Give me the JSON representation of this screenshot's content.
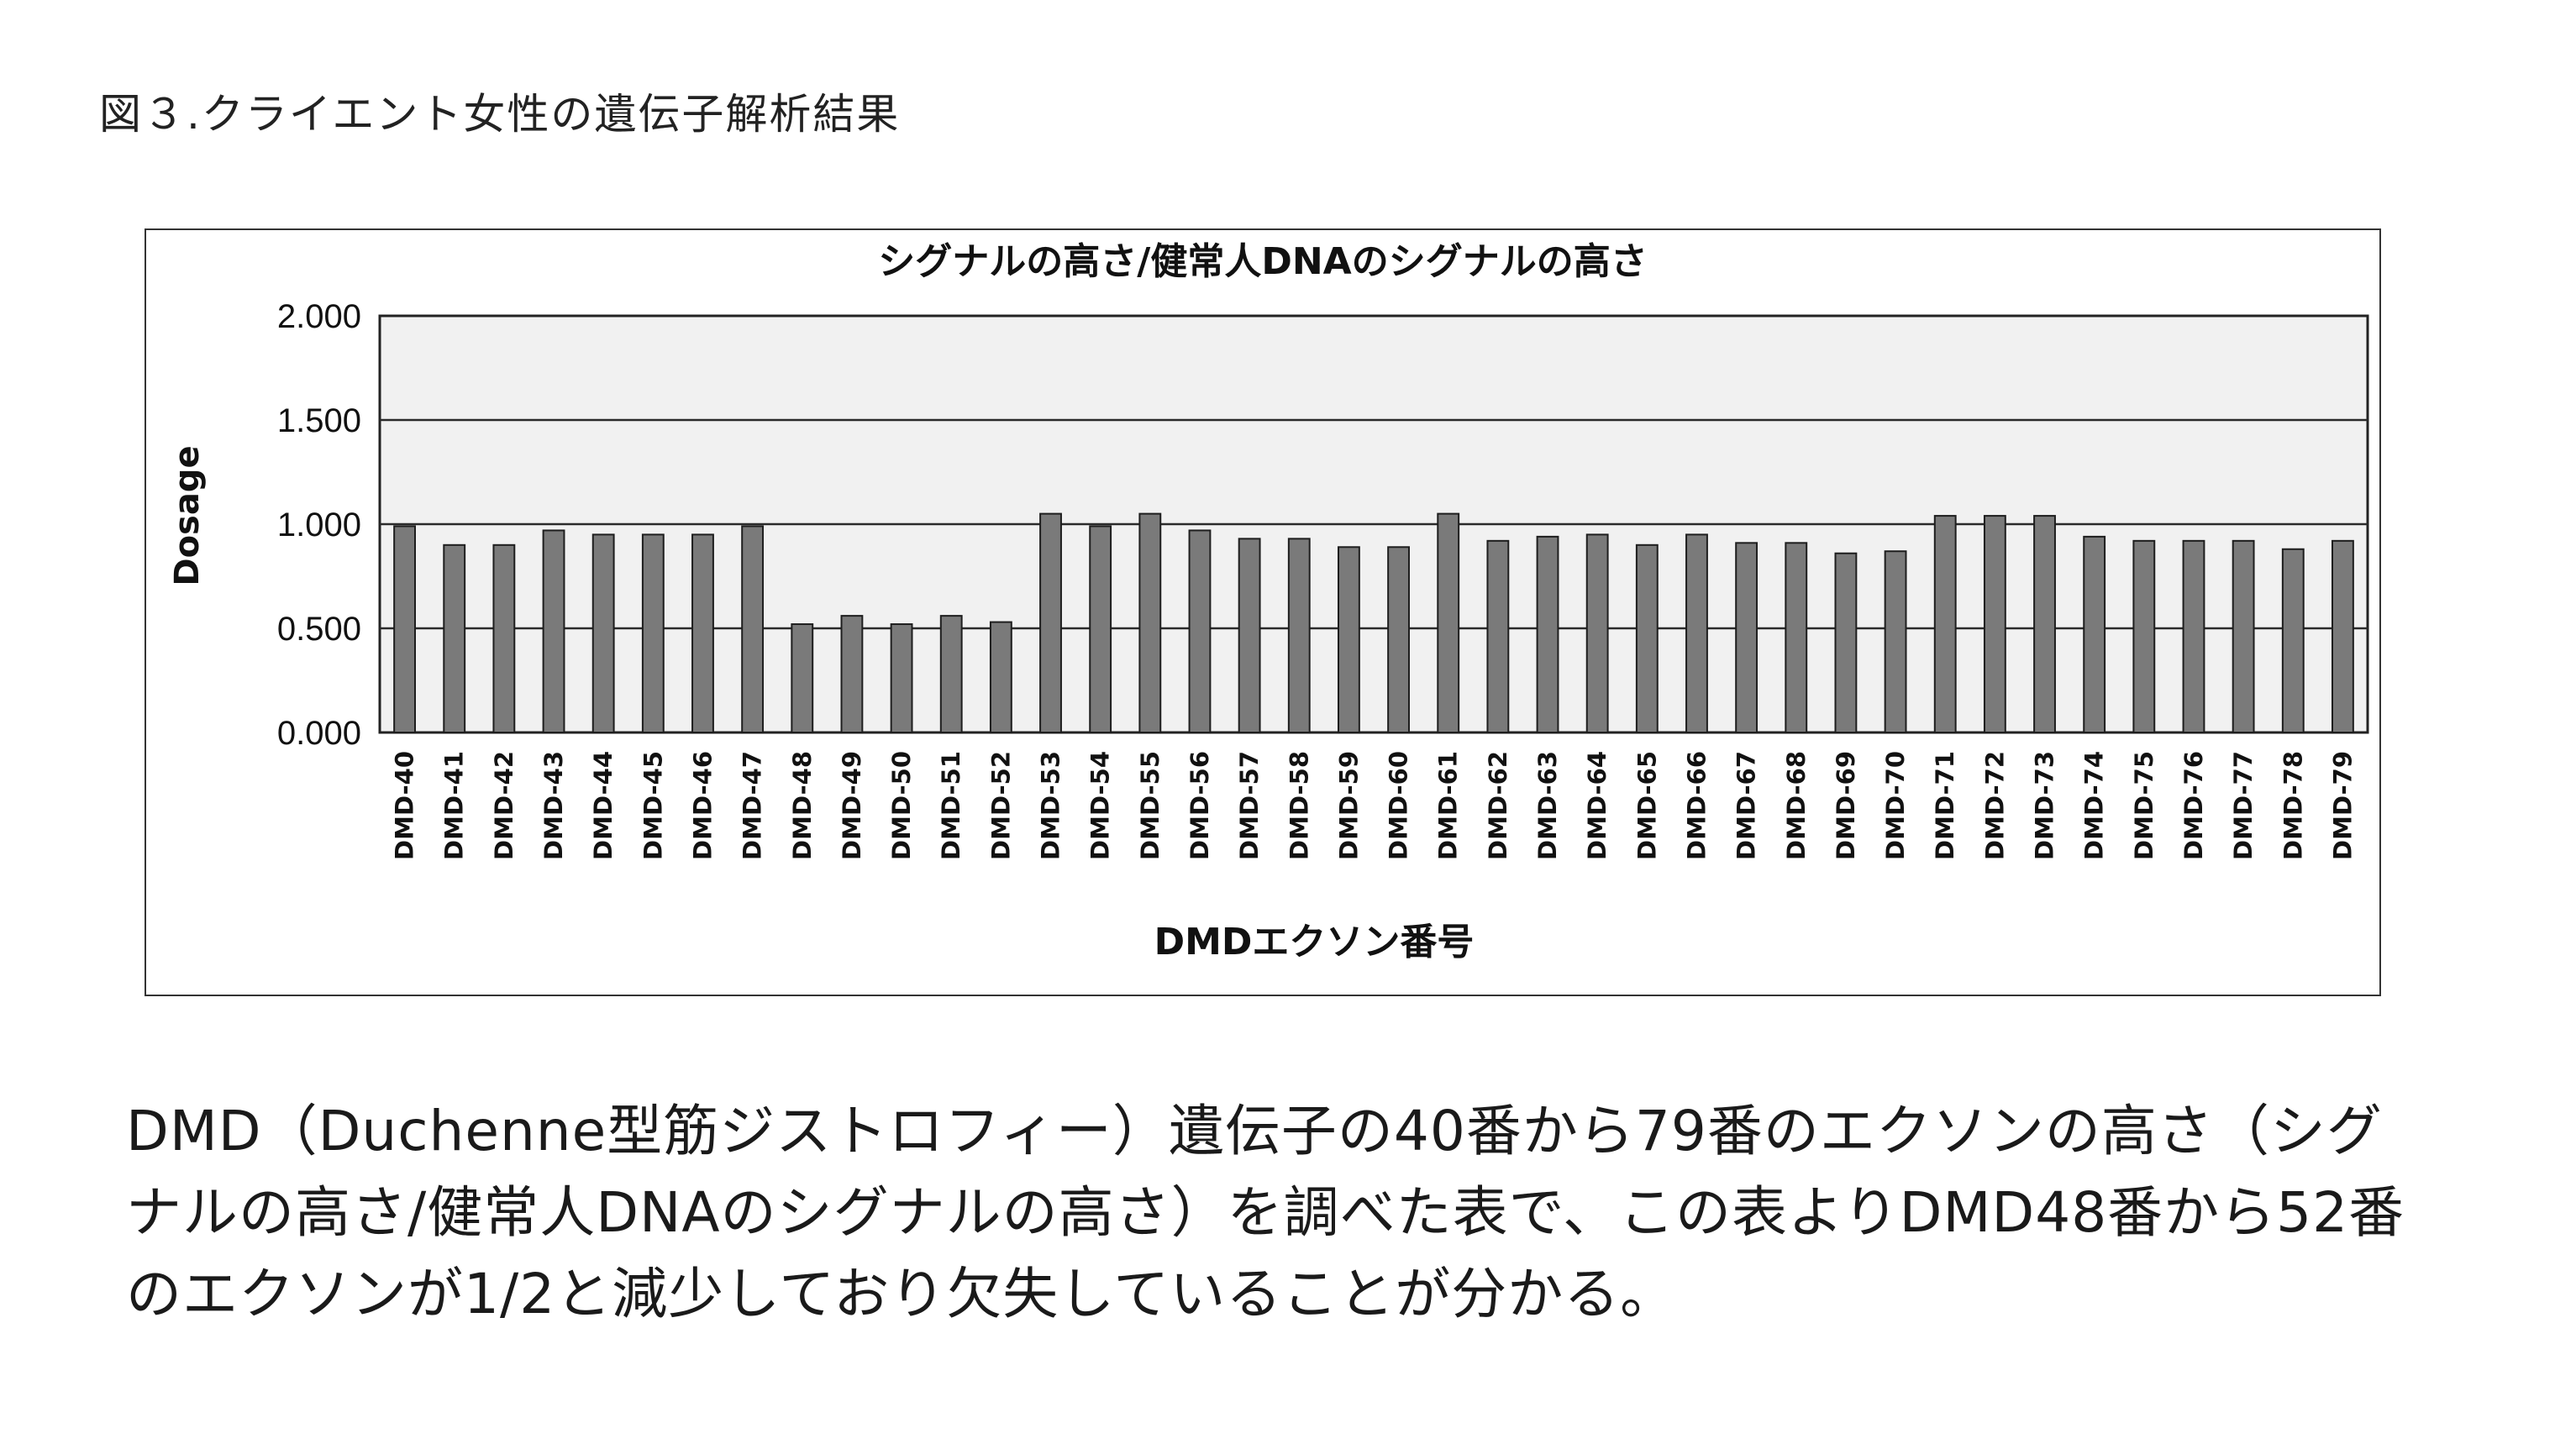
{
  "figure_caption": "図３.クライエント女性の遺伝子解析結果",
  "description": "DMD（Duchenne型筋ジストロフィー）遺伝子の40番から79番のエクソンの高さ（シグナルの高さ/健常人DNAのシグナルの高さ）を調べた表で、この表よりDMD48番から52番のエクソンが1/2と減少しており欠失していることが分かる。",
  "chart_data": {
    "type": "bar",
    "title": "シグナルの高さ/健常人DNAのシグナルの高さ",
    "xlabel": "DMDエクソン番号",
    "ylabel": "Dosage",
    "ylim": [
      0,
      2.0
    ],
    "yticks": [
      "0.000",
      "0.500",
      "1.000",
      "1.500",
      "2.000"
    ],
    "grid": true,
    "categories": [
      "DMD-40",
      "DMD-41",
      "DMD-42",
      "DMD-43",
      "DMD-44",
      "DMD-45",
      "DMD-46",
      "DMD-47",
      "DMD-48",
      "DMD-49",
      "DMD-50",
      "DMD-51",
      "DMD-52",
      "DMD-53",
      "DMD-54",
      "DMD-55",
      "DMD-56",
      "DMD-57",
      "DMD-58",
      "DMD-59",
      "DMD-60",
      "DMD-61",
      "DMD-62",
      "DMD-63",
      "DMD-64",
      "DMD-65",
      "DMD-66",
      "DMD-67",
      "DMD-68",
      "DMD-69",
      "DMD-70",
      "DMD-71",
      "DMD-72",
      "DMD-73",
      "DMD-74",
      "DMD-75",
      "DMD-76",
      "DMD-77",
      "DMD-78",
      "DMD-79"
    ],
    "values": [
      0.99,
      0.9,
      0.9,
      0.97,
      0.95,
      0.95,
      0.95,
      0.99,
      0.52,
      0.56,
      0.52,
      0.56,
      0.53,
      1.05,
      0.99,
      1.05,
      0.97,
      0.93,
      0.93,
      0.89,
      0.89,
      1.05,
      0.92,
      0.94,
      0.95,
      0.9,
      0.95,
      0.91,
      0.91,
      0.86,
      0.87,
      1.04,
      1.04,
      1.04,
      0.94,
      0.92,
      0.92,
      0.92,
      0.88,
      0.92
    ],
    "colors": {
      "bar": "#7a7a7a",
      "bar_edge": "#1e1e1e",
      "plot_bg": "#f1f1f1",
      "grid": "#2a2a2a"
    }
  }
}
